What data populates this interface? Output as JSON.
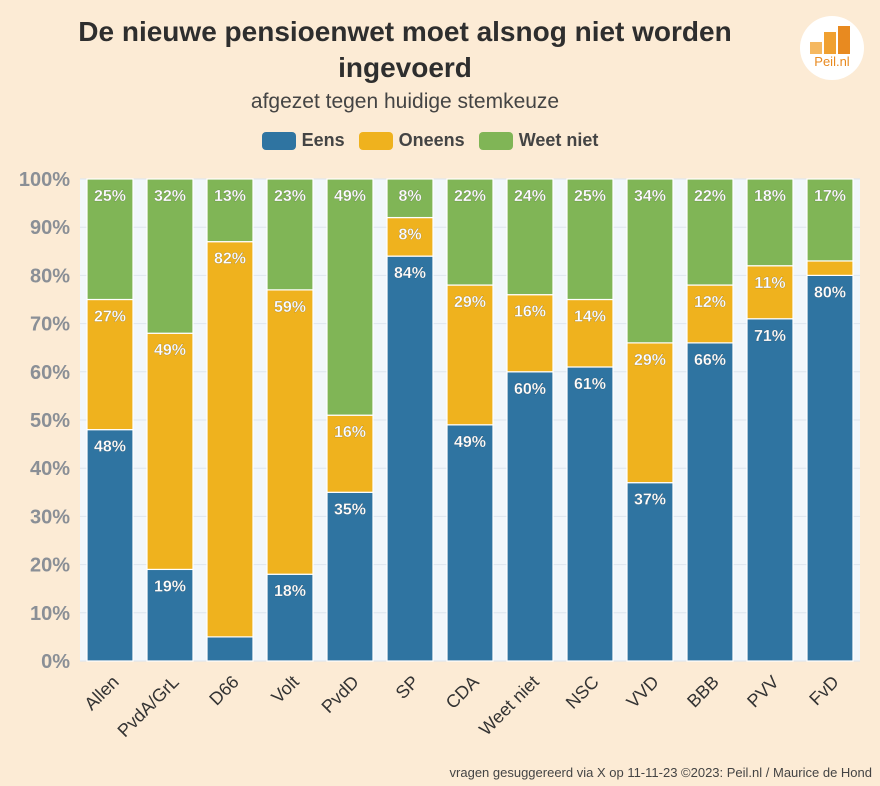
{
  "header": {
    "title": "De nieuwe pensioenwet moet alsnog niet worden ingevoerd",
    "subtitle": "afgezet tegen huidige stemkeuze"
  },
  "logo": {
    "text": "Peil.nl",
    "icon": "bar-chart-logo-icon"
  },
  "footer": {
    "credit": "vragen gesuggereerd via X op 11-11-23 ©2023: Peil.nl / Maurice de Hond"
  },
  "colors": {
    "eens": "#2f74a1",
    "oneens": "#efb21e",
    "weet_niet": "#80b556",
    "background": "#fcebd5"
  },
  "chart_data": {
    "type": "bar",
    "stacked": true,
    "title": "De nieuwe pensioenwet moet alsnog niet worden ingevoerd",
    "subtitle": "afgezet tegen huidige stemkeuze",
    "xlabel": "",
    "ylabel": "",
    "ylim": [
      0,
      100
    ],
    "yticks": [
      "0%",
      "10%",
      "20%",
      "30%",
      "40%",
      "50%",
      "60%",
      "70%",
      "80%",
      "90%",
      "100%"
    ],
    "legend_position": "top",
    "categories": [
      "Allen",
      "PvdA/GrL",
      "D66",
      "Volt",
      "PvdD",
      "SP",
      "CDA",
      "Weet niet",
      "NSC",
      "VVD",
      "BBB",
      "PVV",
      "FvD"
    ],
    "series": [
      {
        "name": "Eens",
        "color": "#2f74a1",
        "values": [
          48,
          19,
          5,
          18,
          35,
          84,
          49,
          60,
          61,
          37,
          66,
          71,
          80
        ],
        "labels": [
          "48%",
          "19%",
          "",
          "18%",
          "35%",
          "84%",
          "49%",
          "60%",
          "61%",
          "37%",
          "66%",
          "71%",
          "80%"
        ]
      },
      {
        "name": "Oneens",
        "color": "#efb21e",
        "values": [
          27,
          49,
          82,
          59,
          16,
          8,
          29,
          16,
          14,
          29,
          12,
          11,
          3
        ],
        "labels": [
          "27%",
          "49%",
          "82%",
          "59%",
          "16%",
          "8%",
          "29%",
          "16%",
          "14%",
          "29%",
          "12%",
          "11%",
          ""
        ]
      },
      {
        "name": "Weet niet",
        "color": "#80b556",
        "values": [
          25,
          32,
          13,
          23,
          49,
          8,
          22,
          24,
          25,
          34,
          22,
          18,
          17
        ],
        "labels": [
          "25%",
          "32%",
          "13%",
          "23%",
          "49%",
          "8%",
          "22%",
          "24%",
          "25%",
          "34%",
          "22%",
          "18%",
          "17%"
        ]
      }
    ]
  }
}
